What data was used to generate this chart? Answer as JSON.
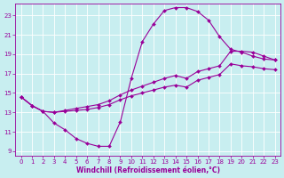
{
  "xlabel": "Windchill (Refroidissement éolien,°C)",
  "bg_color": "#c8eef0",
  "line_color": "#990099",
  "grid_color": "#ffffff",
  "xlim": [
    -0.5,
    23.5
  ],
  "ylim": [
    8.5,
    24.2
  ],
  "xticks": [
    0,
    1,
    2,
    3,
    4,
    5,
    6,
    7,
    8,
    9,
    10,
    11,
    12,
    13,
    14,
    15,
    16,
    17,
    18,
    19,
    20,
    21,
    22,
    23
  ],
  "yticks": [
    9,
    11,
    13,
    15,
    17,
    19,
    21,
    23
  ],
  "curve1_x": [
    0,
    1,
    2,
    3,
    4,
    5,
    6,
    7,
    8,
    9,
    10,
    11,
    12,
    13,
    14,
    15,
    16,
    17,
    18,
    19,
    20,
    21,
    22,
    23
  ],
  "curve1_y": [
    14.6,
    13.7,
    13.1,
    11.9,
    11.2,
    10.3,
    9.8,
    9.5,
    9.5,
    12.0,
    16.5,
    20.3,
    22.1,
    23.5,
    23.8,
    23.8,
    23.4,
    22.5,
    20.8,
    19.5,
    19.2,
    18.8,
    18.5,
    18.4
  ],
  "curve2_x": [
    0,
    1,
    2,
    3,
    4,
    5,
    6,
    7,
    8,
    9,
    10,
    11,
    12,
    13,
    14,
    15,
    16,
    17,
    18,
    19,
    20,
    21,
    22,
    23
  ],
  "curve2_y": [
    14.6,
    13.7,
    13.1,
    13.0,
    13.2,
    13.4,
    13.6,
    13.8,
    14.2,
    14.8,
    15.3,
    15.7,
    16.1,
    16.5,
    16.8,
    16.5,
    17.2,
    17.5,
    17.8,
    19.3,
    19.3,
    19.2,
    18.8,
    18.4
  ],
  "curve3_x": [
    0,
    1,
    2,
    3,
    4,
    5,
    6,
    7,
    8,
    9,
    10,
    11,
    12,
    13,
    14,
    15,
    16,
    17,
    18,
    19,
    20,
    21,
    22,
    23
  ],
  "curve3_y": [
    14.6,
    13.7,
    13.1,
    13.0,
    13.1,
    13.2,
    13.3,
    13.5,
    13.8,
    14.3,
    14.7,
    15.0,
    15.3,
    15.6,
    15.8,
    15.6,
    16.3,
    16.6,
    16.9,
    18.0,
    17.8,
    17.7,
    17.5,
    17.4
  ],
  "marker": "D",
  "markersize": 2.0,
  "linewidth": 0.8,
  "xlabel_fontsize": 5.5,
  "tick_fontsize": 5.0
}
